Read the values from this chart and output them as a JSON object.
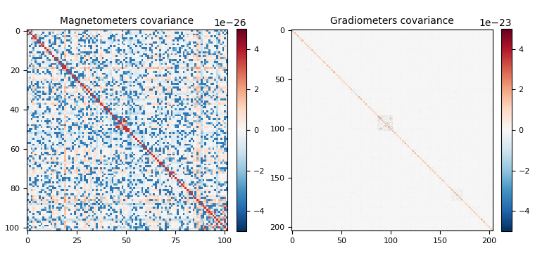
{
  "title1": "Magnetometers covariance",
  "title2": "Gradiometers covariance",
  "mag_size": 102,
  "grad_size": 204,
  "mag_vmin": -5e-26,
  "mag_vmax": 5e-26,
  "grad_vmin": -5e-23,
  "grad_vmax": 5e-23,
  "colormap": "RdBu_r",
  "mag_xticks": [
    0,
    25,
    50,
    75,
    100
  ],
  "mag_yticks": [
    0,
    20,
    40,
    60,
    80,
    100
  ],
  "grad_xticks": [
    0,
    50,
    100,
    150,
    200
  ],
  "grad_yticks": [
    0,
    50,
    100,
    150,
    200
  ],
  "mag_scale": 3e-26,
  "grad_scale": 2e-23
}
